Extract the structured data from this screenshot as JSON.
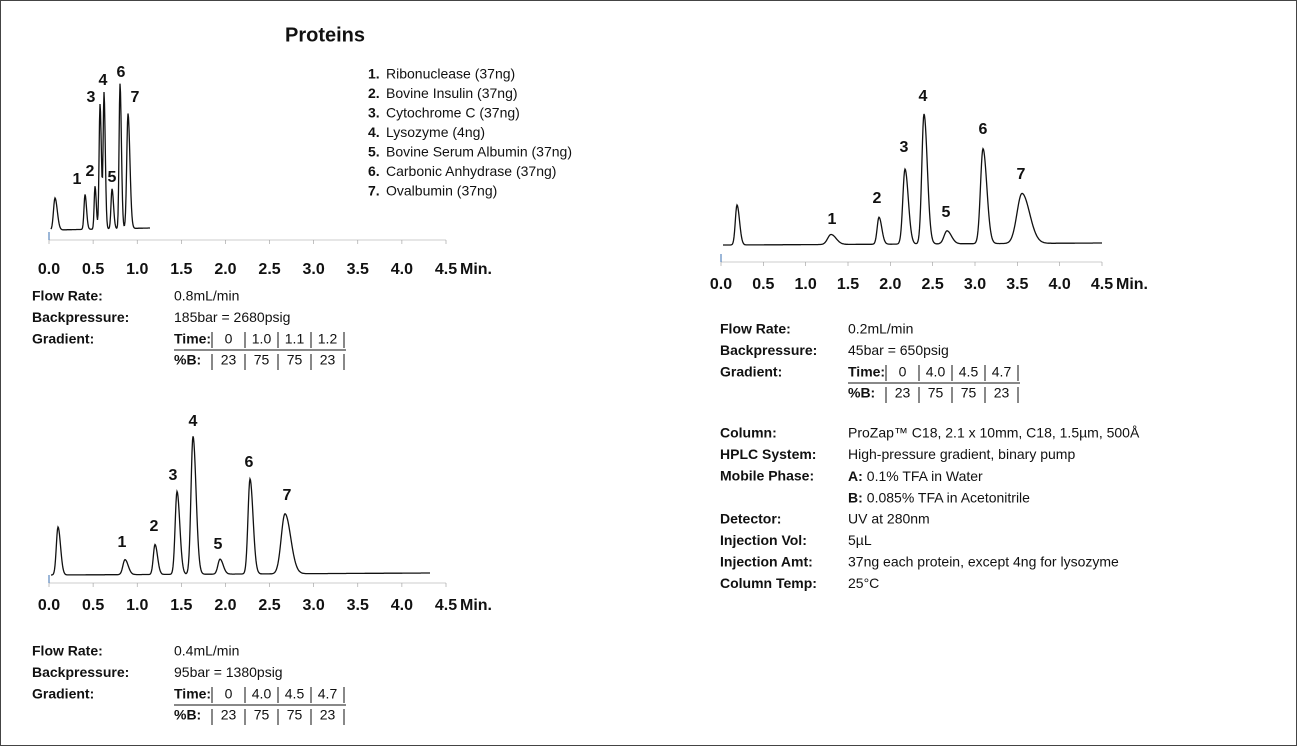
{
  "title": "Proteins",
  "legend": [
    {
      "number": "1.",
      "name": "Ribonuclease (37ng)"
    },
    {
      "number": "2.",
      "name": "Bovine Insulin (37ng)"
    },
    {
      "number": "3.",
      "name": "Cytochrome C (37ng)"
    },
    {
      "number": "4.",
      "name": "Lysozyme (4ng)"
    },
    {
      "number": "5.",
      "name": "Bovine Serum Albumin (37ng)"
    },
    {
      "number": "6.",
      "name": "Carbonic Anhydrase (37ng)"
    },
    {
      "number": "7.",
      "name": "Ovalbumin (37ng)"
    }
  ],
  "peak_labels": [
    "1",
    "2",
    "3",
    "4",
    "5",
    "6",
    "7"
  ],
  "axis": {
    "ticks": [
      "0.0",
      "0.5",
      "1.0",
      "1.5",
      "2.0",
      "2.5",
      "3.0",
      "3.5",
      "4.0",
      "4.5"
    ],
    "unit": "Min."
  },
  "labels": {
    "flow_rate": "Flow Rate:",
    "backpressure": "Backpressure:",
    "gradient": "Gradient:",
    "time": "Time:",
    "percent_b": "%B:"
  },
  "chromatograms": [
    {
      "flow_rate": "0.8mL/min",
      "backpressure": "185bar = 2680psig",
      "times": [
        "0",
        "1.0",
        "1.1",
        "1.2"
      ],
      "percent_b": [
        "23",
        "75",
        "75",
        "23"
      ]
    },
    {
      "flow_rate": "0.4mL/min",
      "backpressure": "95bar = 1380psig",
      "times": [
        "0",
        "4.0",
        "4.5",
        "4.7"
      ],
      "percent_b": [
        "23",
        "75",
        "75",
        "23"
      ]
    },
    {
      "flow_rate": "0.2mL/min",
      "backpressure": "45bar = 650psig",
      "times": [
        "0",
        "4.0",
        "4.5",
        "4.7"
      ],
      "percent_b": [
        "23",
        "75",
        "75",
        "23"
      ]
    }
  ],
  "details": [
    {
      "label": "Column:",
      "value": "ProZap™ C18, 2.1 x 10mm, C18, 1.5µm, 500Å"
    },
    {
      "label": "HPLC System:",
      "value": "High-pressure gradient, binary pump"
    },
    {
      "label": "Mobile Phase:",
      "lines": [
        {
          "prefix": "A:",
          "text": "0.1% TFA in Water"
        },
        {
          "prefix": "B:",
          "text": "0.085% TFA in Acetonitrile"
        }
      ]
    },
    {
      "label": "Detector:",
      "value": "UV at 280nm"
    },
    {
      "label": "Injection Vol:",
      "value": "5µL"
    },
    {
      "label": "Injection Amt:",
      "value": "37ng each protein, except 4ng for lysozyme"
    },
    {
      "label": "Column Temp:",
      "value": "25°C"
    }
  ]
}
